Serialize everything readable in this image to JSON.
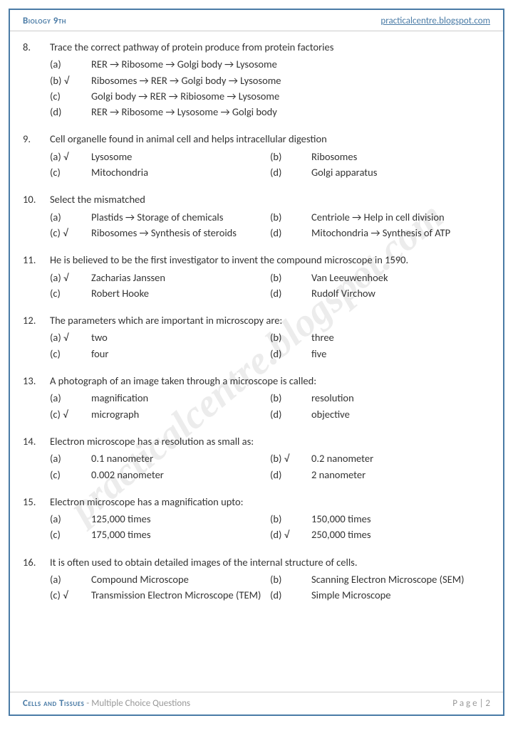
{
  "header": {
    "left": "Biology 9th",
    "right": "practicalcentre.blogspot.com"
  },
  "watermark": "practicalcentre.blogspot.com",
  "footer": {
    "chapter": "Cells and Tissues",
    "sub": " - Multiple Choice Questions",
    "page": "P a g e  | 2"
  },
  "questions": [
    {
      "n": "8.",
      "text": "Trace the correct pathway of protein produce from protein factories",
      "layout": "v",
      "opts": [
        {
          "l": "(a)",
          "t": "RER → Ribosome → Golgi body → Lysosome"
        },
        {
          "l": "(b) √",
          "t": "Ribosomes → RER → Golgi body → Lysosome"
        },
        {
          "l": "(c)",
          "t": "Golgi body → RER → Ribiosome → Lysosome"
        },
        {
          "l": "(d)",
          "t": "RER → Ribosome → Lysosome → Golgi body"
        }
      ]
    },
    {
      "n": "9.",
      "text": "Cell organelle found in animal cell and helps intracellular digestion",
      "layout": "2",
      "opts": [
        {
          "l": "(a) √",
          "t": "Lysosome"
        },
        {
          "l": "(b)",
          "t": "Ribosomes"
        },
        {
          "l": "(c)",
          "t": "Mitochondria"
        },
        {
          "l": "(d)",
          "t": "Golgi apparatus"
        }
      ]
    },
    {
      "n": "10.",
      "text": "Select the mismatched",
      "layout": "2",
      "opts": [
        {
          "l": "(a)",
          "t": "Plastids → Storage of chemicals"
        },
        {
          "l": "(b)",
          "t": "Centriole → Help in cell division"
        },
        {
          "l": "(c) √",
          "t": "Ribosomes → Synthesis of steroids"
        },
        {
          "l": "(d)",
          "t": "Mitochondria → Synthesis of ATP"
        }
      ]
    },
    {
      "n": "11.",
      "text": "He is believed to be the first investigator to invent the compound microscope in 1590.",
      "layout": "2",
      "opts": [
        {
          "l": "(a) √",
          "t": "Zacharias Janssen"
        },
        {
          "l": "(b)",
          "t": "Van Leeuwenhoek"
        },
        {
          "l": "(c)",
          "t": "Robert Hooke"
        },
        {
          "l": "(d)",
          "t": "Rudolf Virchow"
        }
      ]
    },
    {
      "n": "12.",
      "text": "The parameters which are important in microscopy are:",
      "layout": "2",
      "opts": [
        {
          "l": "(a) √",
          "t": "two"
        },
        {
          "l": "(b)",
          "t": "three"
        },
        {
          "l": "(c)",
          "t": "four"
        },
        {
          "l": "(d)",
          "t": "five"
        }
      ]
    },
    {
      "n": "13.",
      "text": "A photograph of an image taken through a microscope is called:",
      "layout": "2",
      "opts": [
        {
          "l": "(a)",
          "t": "magnification"
        },
        {
          "l": "(b)",
          "t": "resolution"
        },
        {
          "l": "(c) √",
          "t": "micrograph"
        },
        {
          "l": "(d)",
          "t": "objective"
        }
      ]
    },
    {
      "n": "14.",
      "text": "Electron microscope has a resolution as small as:",
      "layout": "2",
      "opts": [
        {
          "l": "(a)",
          "t": "0.1 nanometer"
        },
        {
          "l": "(b) √",
          "t": "0.2 nanometer"
        },
        {
          "l": "(c)",
          "t": "0.002 nanometer"
        },
        {
          "l": "(d)",
          "t": "2 nanometer"
        }
      ]
    },
    {
      "n": "15.",
      "text": "Electron microscope has a magnification upto:",
      "layout": "2",
      "opts": [
        {
          "l": "(a)",
          "t": "125,000 times"
        },
        {
          "l": "(b)",
          "t": "150,000 times"
        },
        {
          "l": "(c)",
          "t": "175,000 times"
        },
        {
          "l": "(d) √",
          "t": "250,000 times"
        }
      ]
    },
    {
      "n": "16.",
      "text": "It is often used to obtain detailed images of the internal structure of cells.",
      "layout": "2",
      "opts": [
        {
          "l": "(a)",
          "t": "Compound Microscope"
        },
        {
          "l": "(b)",
          "t": "Scanning Electron Microscope (SEM)"
        },
        {
          "l": "(c) √",
          "t": "Transmission Electron Microscope (TEM)"
        },
        {
          "l": "(d)",
          "t": "Simple Microscope"
        }
      ]
    }
  ]
}
